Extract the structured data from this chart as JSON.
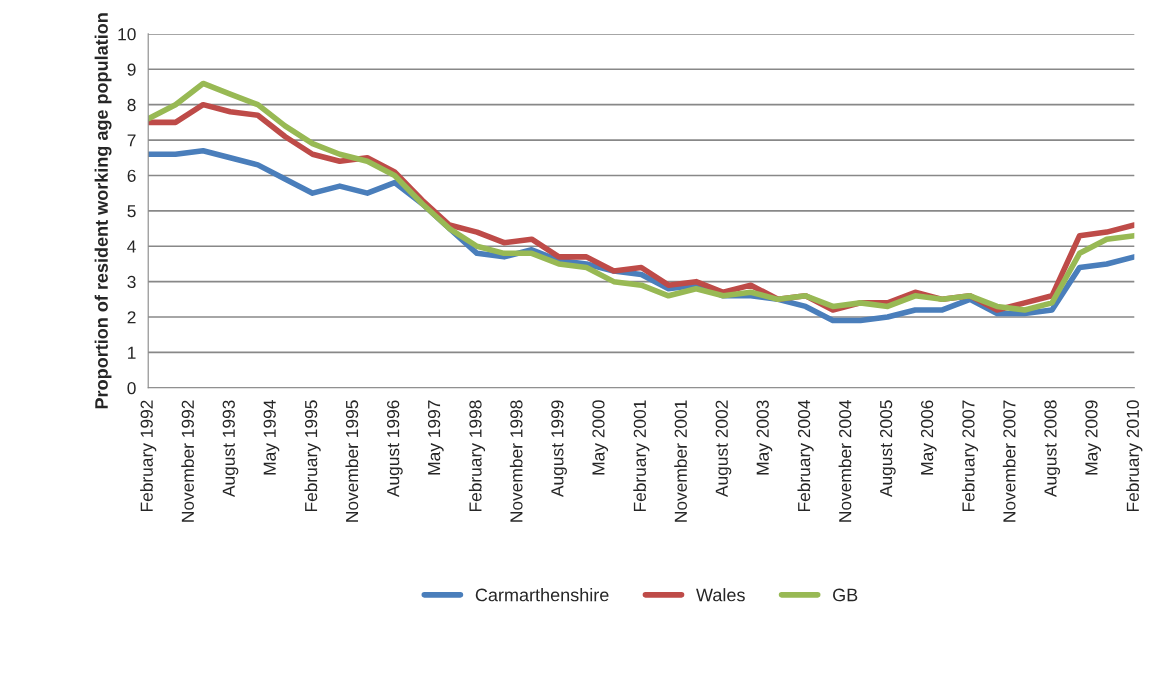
{
  "chart_data": {
    "type": "line",
    "ylabel": "Proportion of resident working age population",
    "x": [
      "1992-02",
      "1992-08",
      "1993-02",
      "1993-08",
      "1994-02",
      "1994-08",
      "1995-02",
      "1995-08",
      "1996-02",
      "1996-08",
      "1997-02",
      "1997-08",
      "1998-02",
      "1998-08",
      "1999-02",
      "1999-08",
      "2000-02",
      "2000-08",
      "2001-02",
      "2001-08",
      "2002-02",
      "2002-08",
      "2003-02",
      "2003-08",
      "2004-02",
      "2004-08",
      "2005-02",
      "2005-08",
      "2006-02",
      "2006-08",
      "2007-02",
      "2007-08",
      "2008-02",
      "2008-08",
      "2009-02",
      "2009-08",
      "2010-02"
    ],
    "series": [
      {
        "name": "Carmarthenshire",
        "color": "#4a7ebb",
        "values": [
          6.6,
          6.6,
          6.7,
          6.5,
          6.3,
          5.9,
          5.5,
          5.7,
          5.5,
          5.8,
          5.2,
          4.5,
          3.8,
          3.7,
          3.9,
          3.6,
          3.5,
          3.3,
          3.2,
          2.8,
          2.9,
          2.6,
          2.6,
          2.5,
          2.3,
          1.9,
          1.9,
          2.0,
          2.2,
          2.2,
          2.5,
          2.1,
          2.1,
          2.2,
          3.4,
          3.5,
          3.7
        ]
      },
      {
        "name": "Wales",
        "color": "#be4b48",
        "values": [
          7.5,
          7.5,
          8.0,
          7.8,
          7.7,
          7.1,
          6.6,
          6.4,
          6.5,
          6.1,
          5.3,
          4.6,
          4.4,
          4.1,
          4.2,
          3.7,
          3.7,
          3.3,
          3.4,
          2.9,
          3.0,
          2.7,
          2.9,
          2.5,
          2.6,
          2.2,
          2.4,
          2.4,
          2.7,
          2.5,
          2.6,
          2.2,
          2.4,
          2.6,
          4.3,
          4.4,
          4.6
        ]
      },
      {
        "name": "GB",
        "color": "#98b954",
        "values": [
          7.6,
          8.0,
          8.6,
          8.3,
          8.0,
          7.4,
          6.9,
          6.6,
          6.4,
          6.0,
          5.2,
          4.5,
          4.0,
          3.8,
          3.8,
          3.5,
          3.4,
          3.0,
          2.9,
          2.6,
          2.8,
          2.6,
          2.7,
          2.5,
          2.6,
          2.3,
          2.4,
          2.3,
          2.6,
          2.5,
          2.6,
          2.3,
          2.2,
          2.4,
          3.8,
          4.2,
          4.3
        ]
      }
    ],
    "xlim": [
      "1992-02",
      "2010-02"
    ],
    "xticks": [
      {
        "value": "1992-02",
        "label": "February 1992"
      },
      {
        "value": "1992-11",
        "label": "November 1992"
      },
      {
        "value": "1993-08",
        "label": "August 1993"
      },
      {
        "value": "1994-05",
        "label": "May 1994"
      },
      {
        "value": "1995-02",
        "label": "February 1995"
      },
      {
        "value": "1995-11",
        "label": "November 1995"
      },
      {
        "value": "1996-08",
        "label": "August 1996"
      },
      {
        "value": "1997-05",
        "label": "May 1997"
      },
      {
        "value": "1998-02",
        "label": "February 1998"
      },
      {
        "value": "1998-11",
        "label": "November 1998"
      },
      {
        "value": "1999-08",
        "label": "August 1999"
      },
      {
        "value": "2000-05",
        "label": "May 2000"
      },
      {
        "value": "2001-02",
        "label": "February 2001"
      },
      {
        "value": "2001-11",
        "label": "November 2001"
      },
      {
        "value": "2002-08",
        "label": "August 2002"
      },
      {
        "value": "2003-05",
        "label": "May 2003"
      },
      {
        "value": "2004-02",
        "label": "February 2004"
      },
      {
        "value": "2004-11",
        "label": "November 2004"
      },
      {
        "value": "2005-08",
        "label": "August 2005"
      },
      {
        "value": "2006-05",
        "label": "May 2006"
      },
      {
        "value": "2007-02",
        "label": "February 2007"
      },
      {
        "value": "2007-11",
        "label": "November 2007"
      },
      {
        "value": "2008-08",
        "label": "August 2008"
      },
      {
        "value": "2009-05",
        "label": "May 2009"
      },
      {
        "value": "2010-02",
        "label": "February 2010"
      }
    ],
    "ylim": [
      0,
      10
    ],
    "yticks": [
      0,
      1,
      2,
      3,
      4,
      5,
      6,
      7,
      8,
      9,
      10
    ],
    "grid": "y",
    "legend": "bottom",
    "marker": "none",
    "line_style": "solid"
  }
}
